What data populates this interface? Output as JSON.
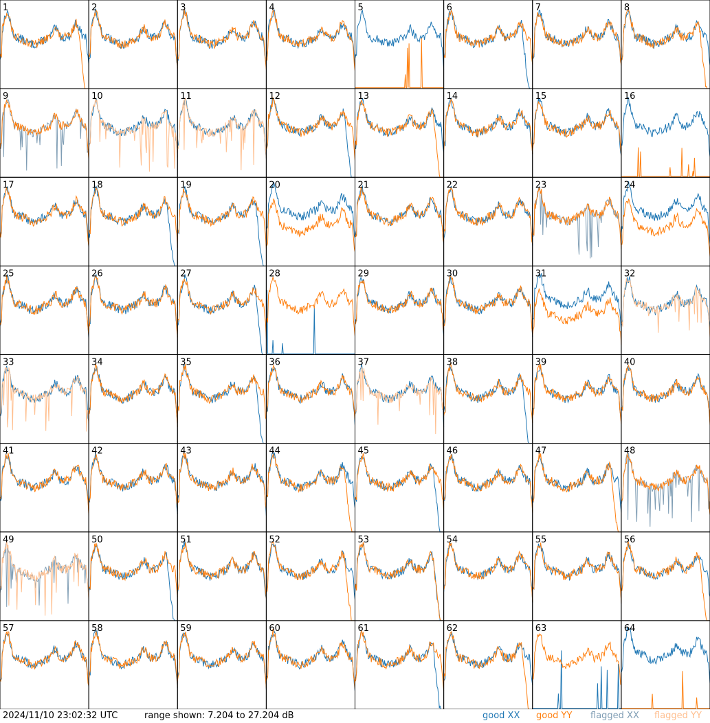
{
  "chart_data": {
    "type": "line",
    "panels": 64,
    "columns": 8,
    "rows": 8,
    "panel_labels": [
      "1",
      "2",
      "3",
      "4",
      "5",
      "6",
      "7",
      "8",
      "9",
      "10",
      "11",
      "12",
      "13",
      "14",
      "15",
      "16",
      "17",
      "18",
      "19",
      "20",
      "21",
      "22",
      "23",
      "24",
      "25",
      "26",
      "27",
      "28",
      "29",
      "30",
      "31",
      "32",
      "33",
      "34",
      "35",
      "36",
      "37",
      "38",
      "39",
      "40",
      "41",
      "42",
      "43",
      "44",
      "45",
      "46",
      "47",
      "48",
      "49",
      "50",
      "51",
      "52",
      "53",
      "54",
      "55",
      "56",
      "57",
      "58",
      "59",
      "60",
      "61",
      "62",
      "63",
      "64"
    ],
    "unit": "dB",
    "ylim": [
      7.204,
      27.204
    ],
    "series_legend": [
      {
        "name": "good XX",
        "color": "#1f77b4"
      },
      {
        "name": "good YY",
        "color": "#ff7f0e"
      },
      {
        "name": "flagged XX",
        "color": "#7f9db4"
      },
      {
        "name": "flagged YY",
        "color": "#ffbf8f"
      }
    ],
    "panel_states": {
      "xx_flagged": [
        "9",
        "23",
        "48",
        "49"
      ],
      "yy_flagged": [
        "10",
        "11",
        "32",
        "33",
        "37",
        "49"
      ],
      "xx_dead": [
        "28",
        "63"
      ],
      "yy_dead": [
        "5",
        "16",
        "64"
      ],
      "xx_droop": [
        "6",
        "12",
        "18",
        "19",
        "27",
        "35",
        "38",
        "45",
        "50",
        "53",
        "61"
      ],
      "yy_droop": [
        "1",
        "8",
        "13",
        "44",
        "47",
        "52",
        "53",
        "56",
        "62"
      ],
      "xx_above_yy": [
        "20",
        "24",
        "31",
        "64"
      ]
    }
  },
  "footer": {
    "timestamp": "2024/11/10 23:02:32 UTC",
    "range_text": "range shown: 7.204 to 27.204 dB",
    "legend_good_xx": "good XX",
    "legend_good_yy": "good YY",
    "legend_flagged_xx": "flagged XX",
    "legend_flagged_yy": "flagged YY"
  }
}
